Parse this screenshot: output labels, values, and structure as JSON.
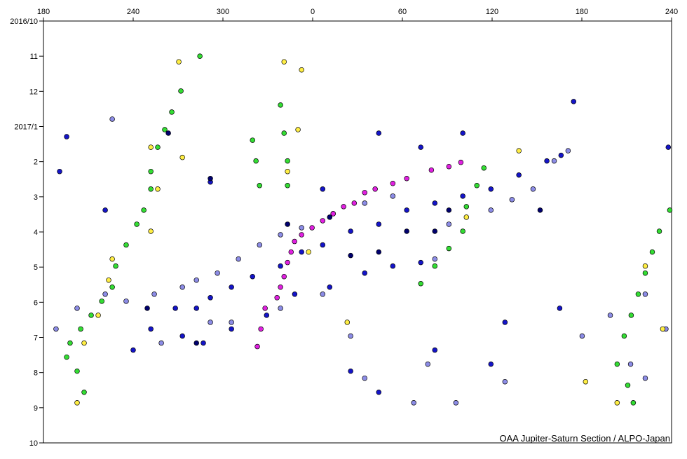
{
  "chart_data": {
    "type": "scatter",
    "credit": "OAA Jupiter-Saturn Section / ALPO-Japan",
    "xlim": [
      180,
      600
    ],
    "xticks": [
      180,
      240,
      300,
      {
        "value": 360,
        "label": "0"
      },
      {
        "value": 420,
        "label": "60"
      },
      {
        "value": 480,
        "label": "120"
      },
      {
        "value": 540,
        "label": "180"
      },
      {
        "value": 600,
        "label": "240"
      }
    ],
    "ylim": [
      0,
      12
    ],
    "y_inverted": true,
    "yticks": [
      {
        "value": 0,
        "label": "2016/10"
      },
      {
        "value": 1,
        "label": "11"
      },
      {
        "value": 2,
        "label": "12"
      },
      {
        "value": 3,
        "label": "2017/1"
      },
      {
        "value": 4,
        "label": "2"
      },
      {
        "value": 5,
        "label": "3"
      },
      {
        "value": 6,
        "label": "4"
      },
      {
        "value": 7,
        "label": "5"
      },
      {
        "value": 8,
        "label": "6"
      },
      {
        "value": 9,
        "label": "7"
      },
      {
        "value": 10,
        "label": "8"
      },
      {
        "value": 11,
        "label": "9"
      },
      {
        "value": 12,
        "label": "10"
      }
    ],
    "series": [
      {
        "color": "#8c8ce6",
        "x": [
          188.4,
          202.5,
          221.3,
          235.3,
          254.1,
          272.9,
          282.3,
          296.3,
          310.4,
          324.5,
          338.5,
          352.6,
          373.7,
          394.8,
          413.6,
          451.1,
          441.7,
          479.2,
          493.3,
          507.4,
          521.5,
          530.8,
          291.6,
          258.8,
          305.7,
          338.5,
          366.7,
          385.4,
          394.8,
          427.6,
          455.8,
          488.6,
          437.0,
          226.0,
          540.2,
          559.0,
          582.4,
          596.2,
          572.6,
          582.4
        ],
        "y": [
          8.76,
          8.17,
          7.77,
          7.97,
          7.77,
          7.57,
          7.37,
          7.17,
          6.77,
          6.37,
          6.08,
          5.88,
          5.48,
          5.18,
          4.98,
          5.78,
          6.77,
          5.38,
          5.08,
          4.78,
          3.98,
          3.69,
          8.57,
          9.16,
          8.57,
          8.17,
          7.77,
          8.96,
          10.16,
          10.86,
          10.86,
          10.26,
          9.76,
          2.79,
          8.96,
          8.37,
          7.77,
          8.76,
          9.76,
          10.16
        ]
      },
      {
        "color": "#1414c8",
        "x": [
          240.0,
          251.8,
          268.2,
          282.3,
          291.6,
          305.7,
          319.8,
          338.5,
          352.6,
          366.7,
          385.4,
          404.2,
          422.9,
          441.7,
          460.4,
          479.2,
          497.9,
          516.6,
          526.1,
          272.9,
          286.9,
          305.7,
          329.2,
          348.0,
          371.4,
          394.8,
          413.6,
          432.3,
          195.5,
          190.8,
          221.3,
          404.2,
          432.3,
          460.4,
          291.6,
          366.7,
          385.4,
          404.2,
          441.7,
          479.2,
          488.6,
          525.2,
          534.5,
          597.8
        ],
        "y": [
          9.36,
          8.76,
          8.17,
          8.17,
          7.87,
          7.57,
          7.27,
          6.97,
          6.57,
          6.37,
          5.98,
          5.78,
          5.38,
          5.18,
          4.98,
          4.78,
          4.38,
          3.98,
          3.82,
          8.96,
          9.16,
          8.76,
          8.37,
          7.77,
          7.57,
          7.17,
          6.97,
          6.87,
          3.29,
          4.28,
          5.38,
          3.19,
          3.59,
          3.19,
          4.58,
          4.78,
          9.96,
          10.56,
          9.36,
          9.76,
          8.57,
          8.17,
          2.29,
          3.59
        ]
      },
      {
        "color": "#00006e",
        "x": [
          263.5,
          291.6,
          371.4,
          404.2,
          422.9,
          441.7,
          512.1,
          249.4,
          282.3,
          343.2,
          385.4,
          451.1
        ],
        "y": [
          3.19,
          4.48,
          5.58,
          6.57,
          5.98,
          5.98,
          5.38,
          8.17,
          9.16,
          5.78,
          6.67,
          5.38
        ]
      },
      {
        "color": "#33dd33",
        "x": [
          284.6,
          271.9,
          265.8,
          261.1,
          256.4,
          251.8,
          251.8,
          247.1,
          242.4,
          235.3,
          228.3,
          226.0,
          219.0,
          211.9,
          204.9,
          197.8,
          195.5,
          202.5,
          207.2,
          598.8,
          591.8,
          587.1,
          582.4,
          577.7,
          573.0,
          568.3,
          563.6,
          570.7,
          574.4,
          474.5,
          469.8,
          462.8,
          460.4,
          451.1,
          441.7,
          432.3,
          338.5,
          340.9,
          343.2,
          343.2,
          319.8,
          322.1,
          324.5
        ],
        "y": [
          1.0,
          1.99,
          2.59,
          3.09,
          3.59,
          4.28,
          4.78,
          5.38,
          5.78,
          6.37,
          6.97,
          7.57,
          7.97,
          8.37,
          8.76,
          9.16,
          9.56,
          9.96,
          10.56,
          5.38,
          5.98,
          6.57,
          7.17,
          7.77,
          8.37,
          8.96,
          9.76,
          10.36,
          10.86,
          4.18,
          4.68,
          5.28,
          5.98,
          6.47,
          6.97,
          7.47,
          2.39,
          3.19,
          3.98,
          4.68,
          3.39,
          3.98,
          4.68
        ]
      },
      {
        "color": "#ffee44",
        "x": [
          270.5,
          251.8,
          272.9,
          256.4,
          251.8,
          226.0,
          223.6,
          216.6,
          207.2,
          202.5,
          352.6,
          340.9,
          350.2,
          343.2,
          357.3,
          383.1,
          462.8,
          497.9,
          582.4,
          594.1,
          563.6,
          542.5
        ],
        "y": [
          1.16,
          3.59,
          3.88,
          4.78,
          5.98,
          6.77,
          7.37,
          8.37,
          9.16,
          10.86,
          1.39,
          1.16,
          3.09,
          4.28,
          6.57,
          8.57,
          5.58,
          3.69,
          6.97,
          8.76,
          10.86,
          10.26
        ]
      },
      {
        "color": "#e020e0",
        "x": [
          323.0,
          325.4,
          328.2,
          336.2,
          338.5,
          340.9,
          343.2,
          345.6,
          347.9,
          352.6,
          359.6,
          366.7,
          373.7,
          380.7,
          387.8,
          394.8,
          401.8,
          413.6,
          422.9,
          439.4,
          451.1,
          459.1
        ],
        "y": [
          9.26,
          8.76,
          8.17,
          7.87,
          7.57,
          7.27,
          6.87,
          6.57,
          6.27,
          6.08,
          5.88,
          5.68,
          5.48,
          5.28,
          5.18,
          4.88,
          4.78,
          4.62,
          4.48,
          4.24,
          4.14,
          4.02
        ]
      }
    ]
  }
}
